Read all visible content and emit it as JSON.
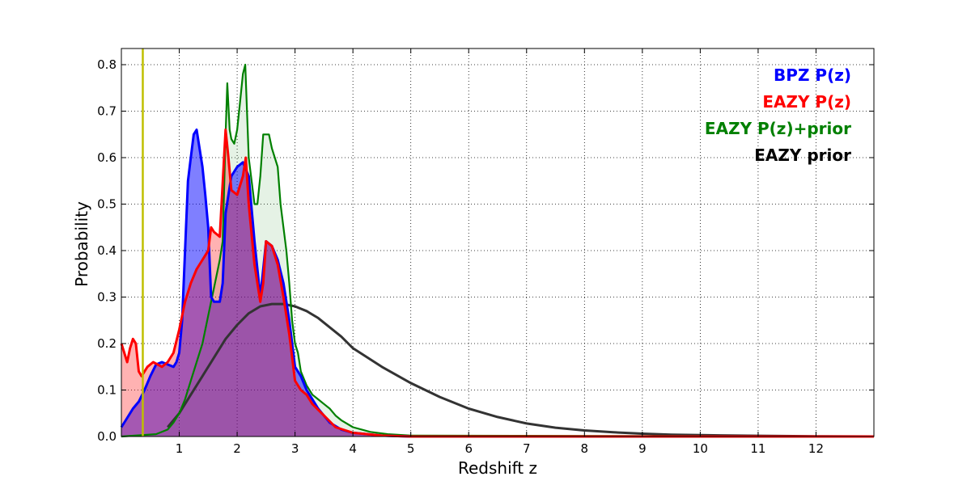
{
  "chart_data": {
    "type": "area",
    "xlabel": "Redshift z",
    "ylabel": "Probability",
    "xlim": [
      0,
      13
    ],
    "ylim": [
      0,
      0.8
    ],
    "x_ticks": [
      1,
      2,
      3,
      4,
      5,
      6,
      7,
      8,
      9,
      10,
      11,
      12
    ],
    "x_tick_labels": [
      "1",
      "2",
      "3",
      "4",
      "5",
      "6",
      "7",
      "8",
      "9",
      "10",
      "11",
      "12"
    ],
    "y_ticks": [
      0.0,
      0.1,
      0.2,
      0.3,
      0.4,
      0.5,
      0.6,
      0.7,
      0.8
    ],
    "y_tick_labels": [
      "0.0",
      "0.1",
      "0.2",
      "0.3",
      "0.4",
      "0.5",
      "0.6",
      "0.7",
      "0.8"
    ],
    "grid": true,
    "legend_position": "top-right",
    "vertical_line": {
      "x": 0.37,
      "color": "#bfbf00"
    },
    "series": [
      {
        "name": "BPZ P(z)",
        "color": "#0000ff",
        "fill_color": "#0000ff",
        "points": [
          [
            0,
            0.02
          ],
          [
            0.1,
            0.04
          ],
          [
            0.2,
            0.06
          ],
          [
            0.3,
            0.075
          ],
          [
            0.4,
            0.1
          ],
          [
            0.5,
            0.13
          ],
          [
            0.6,
            0.155
          ],
          [
            0.7,
            0.16
          ],
          [
            0.8,
            0.155
          ],
          [
            0.9,
            0.15
          ],
          [
            0.95,
            0.16
          ],
          [
            1.0,
            0.18
          ],
          [
            1.05,
            0.25
          ],
          [
            1.1,
            0.4
          ],
          [
            1.15,
            0.55
          ],
          [
            1.2,
            0.6
          ],
          [
            1.25,
            0.65
          ],
          [
            1.3,
            0.66
          ],
          [
            1.35,
            0.62
          ],
          [
            1.4,
            0.58
          ],
          [
            1.45,
            0.52
          ],
          [
            1.5,
            0.45
          ],
          [
            1.55,
            0.3
          ],
          [
            1.6,
            0.29
          ],
          [
            1.7,
            0.29
          ],
          [
            1.75,
            0.33
          ],
          [
            1.8,
            0.48
          ],
          [
            1.85,
            0.52
          ],
          [
            1.9,
            0.56
          ],
          [
            2.0,
            0.58
          ],
          [
            2.1,
            0.59
          ],
          [
            2.2,
            0.56
          ],
          [
            2.3,
            0.42
          ],
          [
            2.4,
            0.3
          ],
          [
            2.45,
            0.36
          ],
          [
            2.5,
            0.42
          ],
          [
            2.6,
            0.41
          ],
          [
            2.7,
            0.38
          ],
          [
            2.8,
            0.33
          ],
          [
            2.9,
            0.25
          ],
          [
            3.0,
            0.15
          ],
          [
            3.1,
            0.13
          ],
          [
            3.2,
            0.1
          ],
          [
            3.4,
            0.06
          ],
          [
            3.6,
            0.03
          ],
          [
            3.8,
            0.015
          ],
          [
            4.0,
            0.008
          ],
          [
            4.5,
            0.002
          ],
          [
            5.0,
            0.0
          ],
          [
            13.0,
            0.0
          ]
        ]
      },
      {
        "name": "EAZY P(z)",
        "color": "#ff0000",
        "fill_color": "#ff0000",
        "points": [
          [
            0,
            0.2
          ],
          [
            0.05,
            0.18
          ],
          [
            0.1,
            0.16
          ],
          [
            0.15,
            0.19
          ],
          [
            0.2,
            0.21
          ],
          [
            0.25,
            0.2
          ],
          [
            0.3,
            0.14
          ],
          [
            0.35,
            0.13
          ],
          [
            0.45,
            0.15
          ],
          [
            0.55,
            0.16
          ],
          [
            0.7,
            0.15
          ],
          [
            0.8,
            0.16
          ],
          [
            0.9,
            0.18
          ],
          [
            1.0,
            0.23
          ],
          [
            1.1,
            0.29
          ],
          [
            1.2,
            0.33
          ],
          [
            1.3,
            0.36
          ],
          [
            1.4,
            0.38
          ],
          [
            1.5,
            0.4
          ],
          [
            1.55,
            0.45
          ],
          [
            1.6,
            0.44
          ],
          [
            1.7,
            0.43
          ],
          [
            1.8,
            0.66
          ],
          [
            1.85,
            0.6
          ],
          [
            1.9,
            0.53
          ],
          [
            2.0,
            0.52
          ],
          [
            2.1,
            0.56
          ],
          [
            2.15,
            0.6
          ],
          [
            2.2,
            0.5
          ],
          [
            2.3,
            0.37
          ],
          [
            2.4,
            0.29
          ],
          [
            2.45,
            0.33
          ],
          [
            2.5,
            0.42
          ],
          [
            2.6,
            0.41
          ],
          [
            2.7,
            0.37
          ],
          [
            2.8,
            0.3
          ],
          [
            2.9,
            0.22
          ],
          [
            3.0,
            0.12
          ],
          [
            3.1,
            0.1
          ],
          [
            3.2,
            0.09
          ],
          [
            3.3,
            0.07
          ],
          [
            3.5,
            0.045
          ],
          [
            3.7,
            0.02
          ],
          [
            4.0,
            0.008
          ],
          [
            4.5,
            0.002
          ],
          [
            5.0,
            0.0
          ],
          [
            13.0,
            0.0
          ]
        ]
      },
      {
        "name": "EAZY P(z)+prior",
        "color": "#008000",
        "fill_color": "#008000",
        "points": [
          [
            0,
            0.0
          ],
          [
            0.6,
            0.005
          ],
          [
            0.8,
            0.015
          ],
          [
            0.9,
            0.03
          ],
          [
            1.0,
            0.05
          ],
          [
            1.1,
            0.08
          ],
          [
            1.2,
            0.12
          ],
          [
            1.3,
            0.16
          ],
          [
            1.4,
            0.2
          ],
          [
            1.5,
            0.26
          ],
          [
            1.6,
            0.32
          ],
          [
            1.7,
            0.38
          ],
          [
            1.75,
            0.42
          ],
          [
            1.8,
            0.65
          ],
          [
            1.83,
            0.76
          ],
          [
            1.87,
            0.66
          ],
          [
            1.9,
            0.64
          ],
          [
            1.95,
            0.63
          ],
          [
            2.0,
            0.66
          ],
          [
            2.05,
            0.72
          ],
          [
            2.1,
            0.78
          ],
          [
            2.14,
            0.8
          ],
          [
            2.2,
            0.6
          ],
          [
            2.3,
            0.5
          ],
          [
            2.35,
            0.5
          ],
          [
            2.4,
            0.56
          ],
          [
            2.45,
            0.65
          ],
          [
            2.55,
            0.65
          ],
          [
            2.6,
            0.62
          ],
          [
            2.7,
            0.58
          ],
          [
            2.75,
            0.5
          ],
          [
            2.8,
            0.45
          ],
          [
            2.85,
            0.4
          ],
          [
            2.9,
            0.33
          ],
          [
            2.95,
            0.25
          ],
          [
            3.0,
            0.2
          ],
          [
            3.05,
            0.18
          ],
          [
            3.1,
            0.14
          ],
          [
            3.2,
            0.11
          ],
          [
            3.3,
            0.09
          ],
          [
            3.4,
            0.08
          ],
          [
            3.5,
            0.07
          ],
          [
            3.6,
            0.06
          ],
          [
            3.7,
            0.045
          ],
          [
            3.8,
            0.035
          ],
          [
            4.0,
            0.02
          ],
          [
            4.3,
            0.01
          ],
          [
            4.6,
            0.005
          ],
          [
            5.0,
            0.002
          ],
          [
            13.0,
            0.0
          ]
        ]
      },
      {
        "name": "EAZY prior",
        "color": "#333333",
        "fill_color": "",
        "points": [
          [
            0.8,
            0.02
          ],
          [
            1.0,
            0.05
          ],
          [
            1.2,
            0.09
          ],
          [
            1.4,
            0.13
          ],
          [
            1.6,
            0.17
          ],
          [
            1.8,
            0.21
          ],
          [
            2.0,
            0.24
          ],
          [
            2.2,
            0.265
          ],
          [
            2.4,
            0.28
          ],
          [
            2.6,
            0.285
          ],
          [
            2.8,
            0.285
          ],
          [
            3.0,
            0.28
          ],
          [
            3.2,
            0.27
          ],
          [
            3.4,
            0.255
          ],
          [
            3.6,
            0.235
          ],
          [
            3.8,
            0.215
          ],
          [
            4.0,
            0.19
          ],
          [
            4.5,
            0.15
          ],
          [
            5.0,
            0.115
          ],
          [
            5.5,
            0.085
          ],
          [
            6.0,
            0.06
          ],
          [
            6.5,
            0.042
          ],
          [
            7.0,
            0.028
          ],
          [
            7.5,
            0.019
          ],
          [
            8.0,
            0.013
          ],
          [
            8.5,
            0.009
          ],
          [
            9.0,
            0.006
          ],
          [
            9.5,
            0.004
          ],
          [
            10.0,
            0.003
          ],
          [
            11.0,
            0.0015
          ],
          [
            12.0,
            0.0005
          ],
          [
            13.0,
            0.0
          ]
        ]
      }
    ]
  }
}
